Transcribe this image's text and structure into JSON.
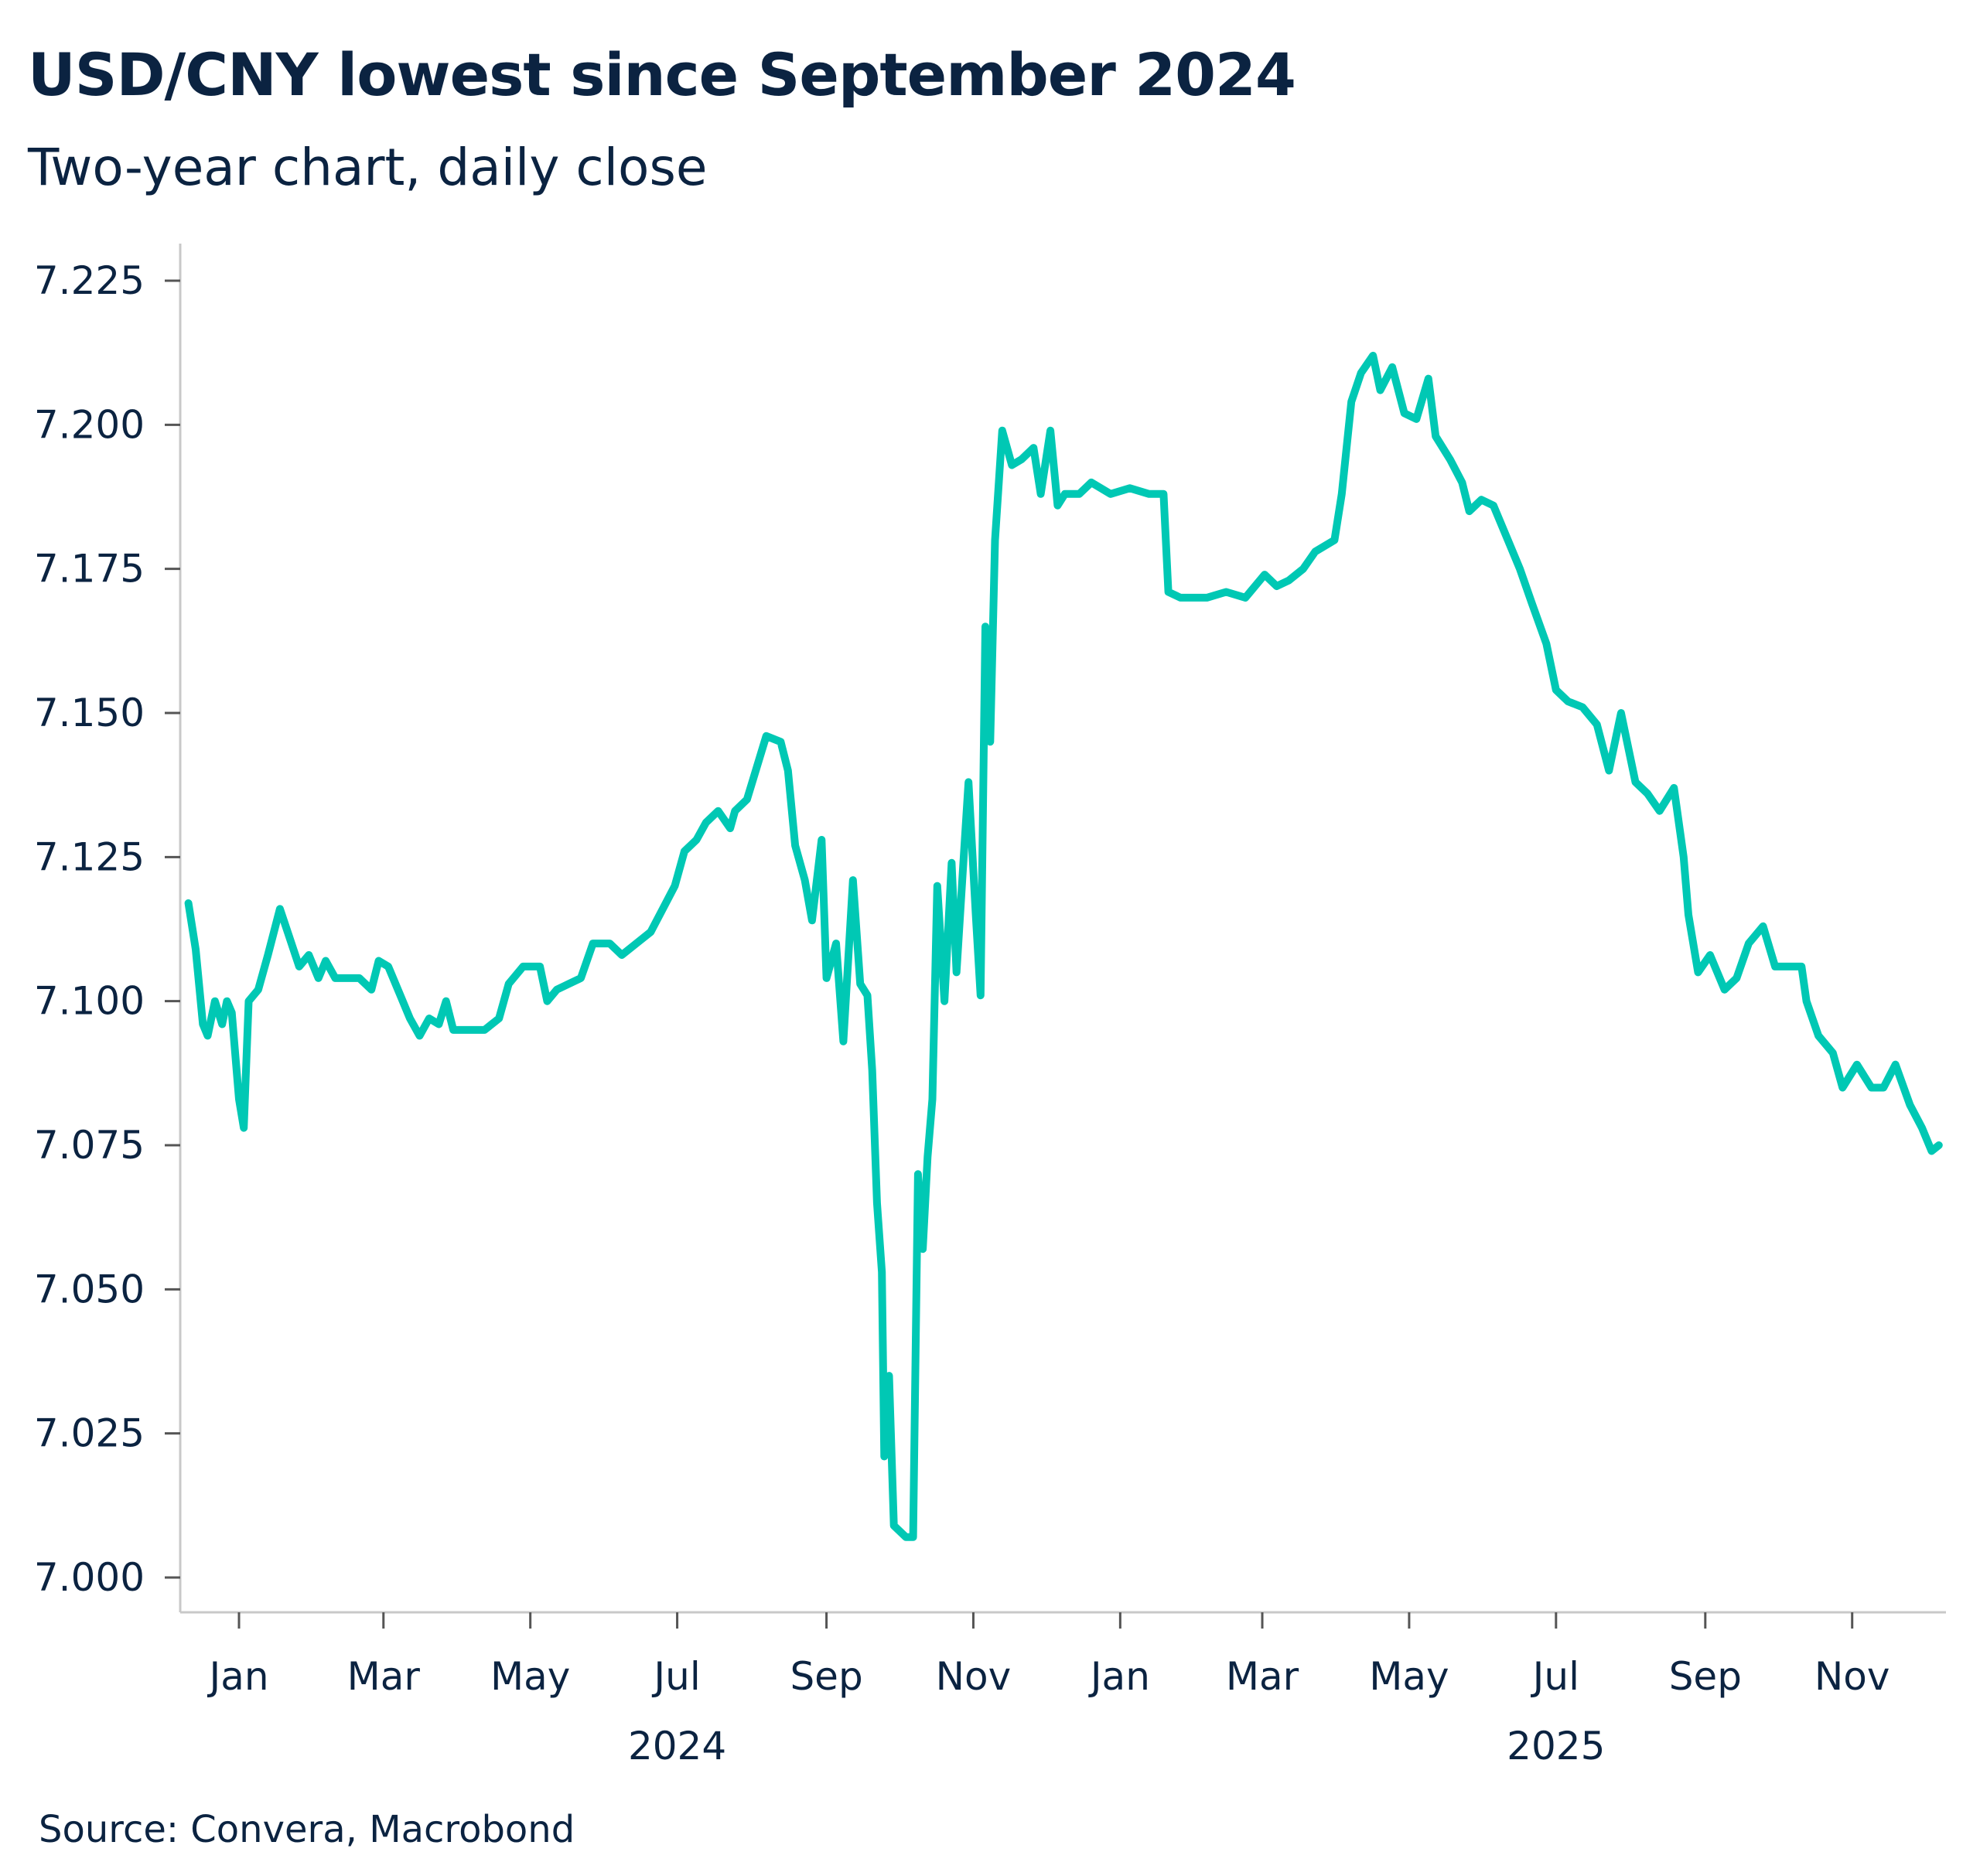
{
  "title": "USD/CNY lowest since September 2024",
  "subtitle": "Two-year chart, daily close",
  "source": "Source: Convera, Macrobond",
  "colors": {
    "line": "#00c8b4",
    "text": "#0b2341",
    "axis": "#c8c8c8"
  },
  "chart_data": {
    "type": "line",
    "title": "USD/CNY lowest since September 2024",
    "subtitle": "Two-year chart, daily close",
    "xlabel": "",
    "ylabel": "",
    "ylim": [
      7.0,
      7.225
    ],
    "xlim": [
      "2023-12-08",
      "2025-12-10"
    ],
    "grid": false,
    "legend": "none",
    "y_ticks": [
      "7.000",
      "7.025",
      "7.050",
      "7.075",
      "7.100",
      "7.125",
      "7.150",
      "7.175",
      "7.200",
      "7.225"
    ],
    "x_ticks": [
      {
        "date": "2024-01-01",
        "label": "Jan"
      },
      {
        "date": "2024-03-01",
        "label": "Mar"
      },
      {
        "date": "2024-05-01",
        "label": "May"
      },
      {
        "date": "2024-07-01",
        "label": "Jul"
      },
      {
        "date": "2024-09-01",
        "label": "Sep"
      },
      {
        "date": "2024-11-01",
        "label": "Nov"
      },
      {
        "date": "2025-01-01",
        "label": "Jan"
      },
      {
        "date": "2025-03-01",
        "label": "Mar"
      },
      {
        "date": "2025-05-01",
        "label": "May"
      },
      {
        "date": "2025-07-01",
        "label": "Jul"
      },
      {
        "date": "2025-09-01",
        "label": "Sep"
      },
      {
        "date": "2025-11-01",
        "label": "Nov"
      }
    ],
    "year_labels": [
      {
        "date": "2024-07-01",
        "label": "2024"
      },
      {
        "date": "2025-07-01",
        "label": "2025"
      }
    ],
    "series": [
      {
        "points": [
          [
            "2023-12-11",
            7.117
          ],
          [
            "2023-12-14",
            7.109
          ],
          [
            "2023-12-17",
            7.096
          ],
          [
            "2023-12-19",
            7.094
          ],
          [
            "2023-12-22",
            7.1
          ],
          [
            "2023-12-25",
            7.096
          ],
          [
            "2023-12-27",
            7.1
          ],
          [
            "2023-12-29",
            7.098
          ],
          [
            "2024-01-01",
            7.083
          ],
          [
            "2024-01-03",
            7.078
          ],
          [
            "2024-01-05",
            7.1
          ],
          [
            "2024-01-09",
            7.102
          ],
          [
            "2024-01-13",
            7.108
          ],
          [
            "2024-01-18",
            7.116
          ],
          [
            "2024-01-22",
            7.111
          ],
          [
            "2024-01-26",
            7.106
          ],
          [
            "2024-01-30",
            7.108
          ],
          [
            "2024-02-03",
            7.104
          ],
          [
            "2024-02-06",
            7.107
          ],
          [
            "2024-02-10",
            7.104
          ],
          [
            "2024-02-20",
            7.104
          ],
          [
            "2024-02-25",
            7.102
          ],
          [
            "2024-02-28",
            7.107
          ],
          [
            "2024-03-03",
            7.106
          ],
          [
            "2024-03-08",
            7.101
          ],
          [
            "2024-03-12",
            7.097
          ],
          [
            "2024-03-16",
            7.094
          ],
          [
            "2024-03-20",
            7.097
          ],
          [
            "2024-03-24",
            7.096
          ],
          [
            "2024-03-27",
            7.1
          ],
          [
            "2024-03-30",
            7.095
          ],
          [
            "2024-04-05",
            7.095
          ],
          [
            "2024-04-12",
            7.095
          ],
          [
            "2024-04-18",
            7.097
          ],
          [
            "2024-04-22",
            7.103
          ],
          [
            "2024-04-28",
            7.106
          ],
          [
            "2024-05-05",
            7.106
          ],
          [
            "2024-05-08",
            7.1
          ],
          [
            "2024-05-12",
            7.102
          ],
          [
            "2024-05-17",
            7.103
          ],
          [
            "2024-05-22",
            7.104
          ],
          [
            "2024-05-27",
            7.11
          ],
          [
            "2024-06-03",
            7.11
          ],
          [
            "2024-06-08",
            7.108
          ],
          [
            "2024-06-14",
            7.11
          ],
          [
            "2024-06-20",
            7.112
          ],
          [
            "2024-06-25",
            7.116
          ],
          [
            "2024-06-30",
            7.12
          ],
          [
            "2024-07-04",
            7.126
          ],
          [
            "2024-07-09",
            7.128
          ],
          [
            "2024-07-13",
            7.131
          ],
          [
            "2024-07-18",
            7.133
          ],
          [
            "2024-07-23",
            7.13
          ],
          [
            "2024-07-25",
            7.133
          ],
          [
            "2024-07-30",
            7.135
          ],
          [
            "2024-08-07",
            7.146
          ],
          [
            "2024-08-13",
            7.145
          ],
          [
            "2024-08-16",
            7.14
          ],
          [
            "2024-08-19",
            7.127
          ],
          [
            "2024-08-23",
            7.121
          ],
          [
            "2024-08-26",
            7.114
          ],
          [
            "2024-08-30",
            7.128
          ],
          [
            "2024-09-01",
            7.104
          ],
          [
            "2024-09-05",
            7.11
          ],
          [
            "2024-09-08",
            7.093
          ],
          [
            "2024-09-12",
            7.121
          ],
          [
            "2024-09-15",
            7.103
          ],
          [
            "2024-09-18",
            7.101
          ],
          [
            "2024-09-20",
            7.088
          ],
          [
            "2024-09-22",
            7.065
          ],
          [
            "2024-09-24",
            7.053
          ],
          [
            "2024-09-25",
            7.021
          ],
          [
            "2024-09-27",
            7.035
          ],
          [
            "2024-09-29",
            7.009
          ],
          [
            "2024-10-04",
            7.007
          ],
          [
            "2024-10-07",
            7.007
          ],
          [
            "2024-10-09",
            7.07
          ],
          [
            "2024-10-11",
            7.057
          ],
          [
            "2024-10-13",
            7.073
          ],
          [
            "2024-10-15",
            7.083
          ],
          [
            "2024-10-17",
            7.12
          ],
          [
            "2024-10-20",
            7.1
          ],
          [
            "2024-10-23",
            7.124
          ],
          [
            "2024-10-25",
            7.105
          ],
          [
            "2024-10-28",
            7.125
          ],
          [
            "2024-10-30",
            7.138
          ],
          [
            "2024-11-02",
            7.115
          ],
          [
            "2024-11-04",
            7.101
          ],
          [
            "2024-11-06",
            7.165
          ],
          [
            "2024-11-08",
            7.145
          ],
          [
            "2024-11-10",
            7.18
          ],
          [
            "2024-11-13",
            7.199
          ],
          [
            "2024-11-17",
            7.193
          ],
          [
            "2024-11-21",
            7.194
          ],
          [
            "2024-11-26",
            7.196
          ],
          [
            "2024-11-29",
            7.188
          ],
          [
            "2024-12-03",
            7.199
          ],
          [
            "2024-12-06",
            7.186
          ],
          [
            "2024-12-09",
            7.188
          ],
          [
            "2024-12-15",
            7.188
          ],
          [
            "2024-12-20",
            7.19
          ],
          [
            "2024-12-28",
            7.188
          ],
          [
            "2025-01-05",
            7.189
          ],
          [
            "2025-01-13",
            7.188
          ],
          [
            "2025-01-19",
            7.188
          ],
          [
            "2025-01-21",
            7.171
          ],
          [
            "2025-01-26",
            7.17
          ],
          [
            "2025-02-06",
            7.17
          ],
          [
            "2025-02-14",
            7.171
          ],
          [
            "2025-02-22",
            7.17
          ],
          [
            "2025-03-02",
            7.174
          ],
          [
            "2025-03-07",
            7.172
          ],
          [
            "2025-03-12",
            7.173
          ],
          [
            "2025-03-18",
            7.175
          ],
          [
            "2025-03-23",
            7.178
          ],
          [
            "2025-03-31",
            7.18
          ],
          [
            "2025-04-03",
            7.188
          ],
          [
            "2025-04-07",
            7.204
          ],
          [
            "2025-04-11",
            7.209
          ],
          [
            "2025-04-16",
            7.212
          ],
          [
            "2025-04-19",
            7.206
          ],
          [
            "2025-04-24",
            7.21
          ],
          [
            "2025-04-29",
            7.202
          ],
          [
            "2025-05-04",
            7.201
          ],
          [
            "2025-05-09",
            7.208
          ],
          [
            "2025-05-12",
            7.198
          ],
          [
            "2025-05-18",
            7.194
          ],
          [
            "2025-05-23",
            7.19
          ],
          [
            "2025-05-26",
            7.185
          ],
          [
            "2025-05-31",
            7.187
          ],
          [
            "2025-06-05",
            7.186
          ],
          [
            "2025-06-11",
            7.18
          ],
          [
            "2025-06-16",
            7.175
          ],
          [
            "2025-06-21",
            7.169
          ],
          [
            "2025-06-27",
            7.162
          ],
          [
            "2025-07-01",
            7.154
          ],
          [
            "2025-07-06",
            7.152
          ],
          [
            "2025-07-12",
            7.151
          ],
          [
            "2025-07-18",
            7.148
          ],
          [
            "2025-07-23",
            7.14
          ],
          [
            "2025-07-28",
            7.15
          ],
          [
            "2025-08-03",
            7.138
          ],
          [
            "2025-08-08",
            7.136
          ],
          [
            "2025-08-13",
            7.133
          ],
          [
            "2025-08-19",
            7.137
          ],
          [
            "2025-08-23",
            7.125
          ],
          [
            "2025-08-25",
            7.115
          ],
          [
            "2025-08-29",
            7.105
          ],
          [
            "2025-09-03",
            7.108
          ],
          [
            "2025-09-09",
            7.102
          ],
          [
            "2025-09-14",
            7.104
          ],
          [
            "2025-09-19",
            7.11
          ],
          [
            "2025-09-25",
            7.113
          ],
          [
            "2025-09-30",
            7.106
          ],
          [
            "2025-10-05",
            7.106
          ],
          [
            "2025-10-11",
            7.106
          ],
          [
            "2025-10-13",
            7.1
          ],
          [
            "2025-10-18",
            7.094
          ],
          [
            "2025-10-24",
            7.091
          ],
          [
            "2025-10-28",
            7.085
          ],
          [
            "2025-11-03",
            7.089
          ],
          [
            "2025-11-09",
            7.085
          ],
          [
            "2025-11-14",
            7.085
          ],
          [
            "2025-11-19",
            7.089
          ],
          [
            "2025-11-25",
            7.082
          ],
          [
            "2025-11-30",
            7.078
          ],
          [
            "2025-12-04",
            7.074
          ],
          [
            "2025-12-07",
            7.075
          ]
        ]
      }
    ]
  }
}
